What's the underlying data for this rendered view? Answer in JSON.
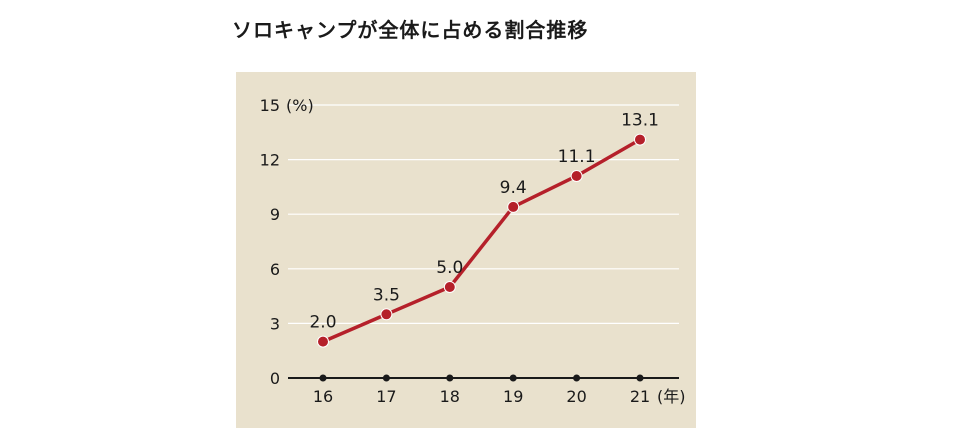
{
  "chart_data": {
    "type": "line",
    "title": "ソロキャンプが全体に占める割合推移",
    "y_unit": "(%)",
    "x_unit": "(年)",
    "categories": [
      "16",
      "17",
      "18",
      "19",
      "20",
      "21"
    ],
    "series": [
      {
        "values": [
          2.0,
          3.5,
          5.0,
          9.4,
          11.1,
          13.1
        ]
      }
    ],
    "data_labels": [
      "2.0",
      "3.5",
      "5.0",
      "9.4",
      "11.1",
      "13.1"
    ],
    "y_ticks": [
      0,
      3,
      6,
      9,
      12,
      15
    ],
    "y_tick_labels": [
      "0",
      "3",
      "6",
      "9",
      "12",
      "15"
    ],
    "ylim": [
      0,
      15
    ],
    "grid": true,
    "colors": {
      "line": "#b5202a",
      "panel": "#e9e1cd",
      "grid": "#ffffff",
      "axis": "#1a1a1a"
    }
  }
}
